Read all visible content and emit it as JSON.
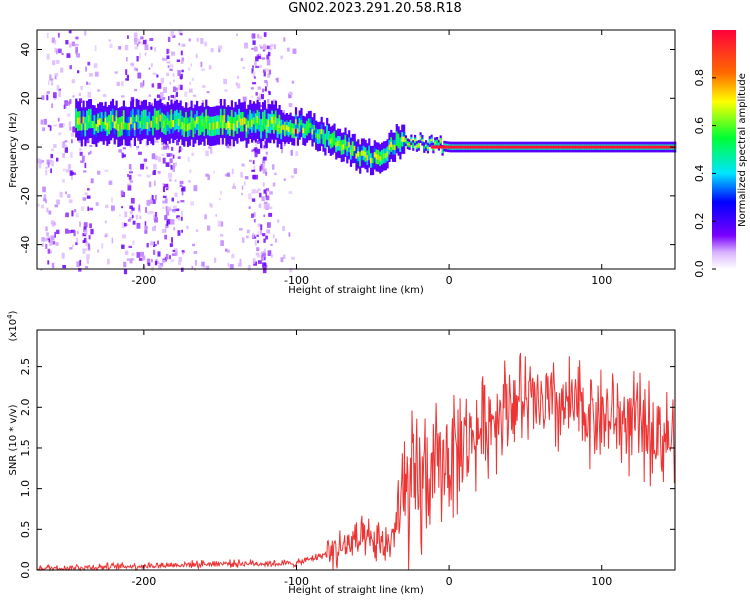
{
  "title": "GN02.2023.291.20.58.R18",
  "chart_data": [
    {
      "type": "heatmap",
      "xlabel": "Height of straight line (km)",
      "ylabel": "Frequency (Hz)",
      "xlim": [
        -270,
        148
      ],
      "ylim": [
        -50,
        48
      ],
      "x_ticks": [
        -200,
        -100,
        0,
        100
      ],
      "y_ticks": [
        -40,
        -20,
        0,
        20,
        40
      ],
      "colorbar": {
        "label": "Normalized spectral amplitude",
        "range": [
          0.0,
          1.0
        ],
        "ticks": [
          0.0,
          0.2,
          0.4,
          0.6,
          0.8
        ],
        "colors": [
          "#ffffff",
          "#7a00ff",
          "#0000ff",
          "#00e5ff",
          "#00ff33",
          "#ffff00",
          "#ff6a00",
          "#ff003c"
        ]
      },
      "ridge": {
        "description_points": [
          {
            "x": -250,
            "y": 10
          },
          {
            "x": -200,
            "y": 10
          },
          {
            "x": -150,
            "y": 10
          },
          {
            "x": -110,
            "y": 9
          },
          {
            "x": -95,
            "y": 8
          },
          {
            "x": -80,
            "y": 4
          },
          {
            "x": -60,
            "y": -3
          },
          {
            "x": -45,
            "y": -5
          },
          {
            "x": -35,
            "y": 2
          },
          {
            "x": -20,
            "y": 2
          },
          {
            "x": 0,
            "y": 0
          },
          {
            "x": 148,
            "y": 0
          }
        ]
      }
    },
    {
      "type": "line",
      "xlabel": "Height of straight line (km)",
      "ylabel": "SNR (10 * v/v)",
      "y_scale_label": "(x10",
      "y_scale_exponent": "4",
      "y_scale_suffix": ")",
      "xlim": [
        -270,
        148
      ],
      "ylim": [
        0,
        2.95
      ],
      "x_ticks": [
        -200,
        -100,
        0,
        100
      ],
      "y_ticks": [
        0.0,
        0.5,
        1.0,
        1.5,
        2.0,
        2.5
      ],
      "series": [
        {
          "color": "#ee3333",
          "envelope": [
            {
              "x": -270,
              "y": 0.02
            },
            {
              "x": -200,
              "y": 0.05
            },
            {
              "x": -150,
              "y": 0.08
            },
            {
              "x": -100,
              "y": 0.08
            },
            {
              "x": -80,
              "y": 0.2
            },
            {
              "x": -60,
              "y": 0.35
            },
            {
              "x": -40,
              "y": 0.3
            },
            {
              "x": -30,
              "y": 0.8
            },
            {
              "x": -20,
              "y": 1.0
            },
            {
              "x": -10,
              "y": 1.2
            },
            {
              "x": 0,
              "y": 1.4
            },
            {
              "x": 20,
              "y": 1.7
            },
            {
              "x": 40,
              "y": 2.1
            },
            {
              "x": 60,
              "y": 2.0
            },
            {
              "x": 80,
              "y": 2.0
            },
            {
              "x": 100,
              "y": 1.9
            },
            {
              "x": 120,
              "y": 1.8
            },
            {
              "x": 148,
              "y": 1.6
            }
          ]
        }
      ]
    }
  ]
}
